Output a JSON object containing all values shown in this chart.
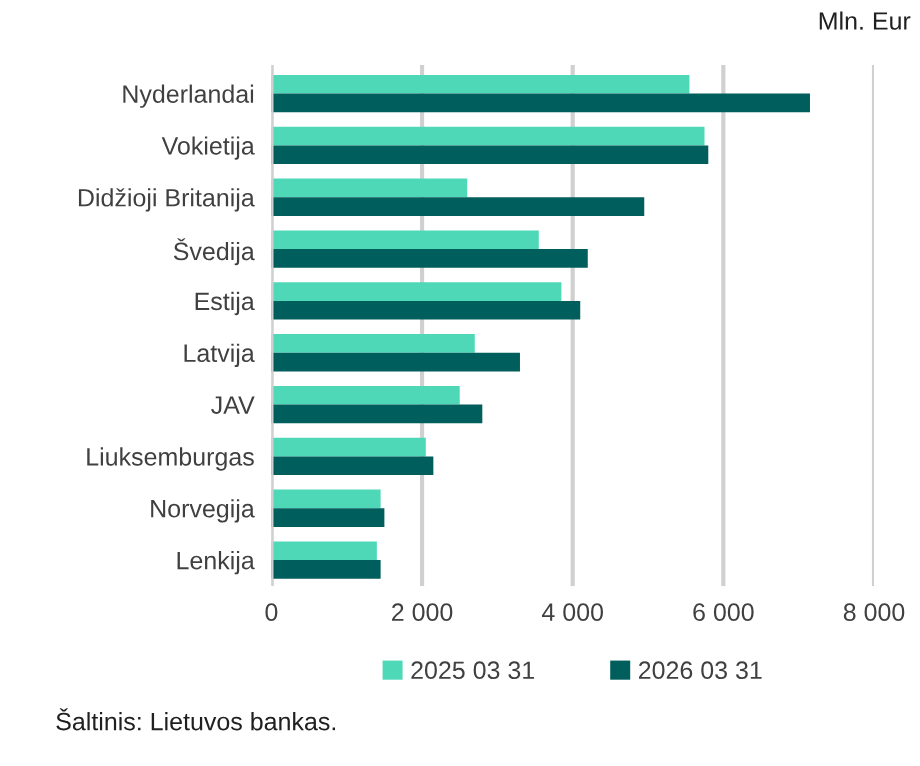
{
  "chart_data": {
    "type": "bar",
    "orientation": "horizontal",
    "categories": [
      "Nyderlandai",
      "Vokietija",
      "Didžioji Britanija",
      "Švedija",
      "Estija",
      "Latvija",
      "JAV",
      "Liuksemburgas",
      "Norvegija",
      "Lenkija"
    ],
    "series": [
      {
        "name": "2025 03 31",
        "color": "#4fd8b8",
        "values": [
          5550,
          5750,
          2600,
          3550,
          3850,
          2700,
          2500,
          2050,
          1450,
          1400
        ]
      },
      {
        "name": "2026 03 31",
        "color": "#005e5c",
        "values": [
          7150,
          5800,
          4950,
          4200,
          4100,
          3300,
          2800,
          2150,
          1500,
          1450
        ]
      }
    ],
    "xlim": [
      0,
      8000
    ],
    "xticks": [
      {
        "value": 0,
        "label": "0"
      },
      {
        "value": 2000,
        "label": "2 000"
      },
      {
        "value": 4000,
        "label": "4 000"
      },
      {
        "value": 6000,
        "label": "6 000"
      },
      {
        "value": 8000,
        "label": "8 000"
      }
    ],
    "grid": "x",
    "legend": "bottom",
    "annotations": [
      "Mln. Eur",
      "Šaltinis: Lietuvos bankas."
    ]
  }
}
